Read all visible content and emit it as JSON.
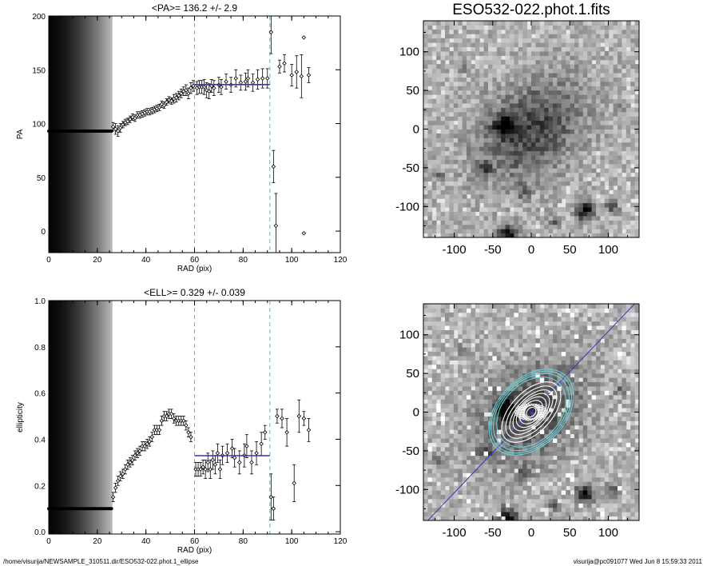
{
  "chart_data": [
    {
      "id": "pa",
      "type": "scatter",
      "title": "<PA>= 136.2 +/-   2.9",
      "xlabel": "RAD (pix)",
      "ylabel": "PA",
      "xlim": [
        0,
        120
      ],
      "ylim": [
        -20,
        200
      ],
      "xticks": [
        0,
        20,
        40,
        60,
        80,
        100,
        120
      ],
      "yticks": [
        0,
        50,
        100,
        150,
        200
      ],
      "vlines": [
        60,
        91
      ],
      "fit": {
        "x": [
          60,
          91
        ],
        "y": 136.2
      },
      "flat": {
        "x": [
          0,
          26
        ],
        "y": 93
      },
      "points": [
        [
          26.5,
          97,
          4
        ],
        [
          27.5,
          95,
          5
        ],
        [
          28.5,
          93,
          5
        ],
        [
          29.5,
          96,
          4
        ],
        [
          30.5,
          99,
          3
        ],
        [
          31.5,
          101,
          3
        ],
        [
          32.5,
          102,
          3
        ],
        [
          33.5,
          104,
          3
        ],
        [
          34.5,
          106,
          3
        ],
        [
          35.5,
          105,
          3
        ],
        [
          36.5,
          108,
          3
        ],
        [
          37.5,
          108,
          3
        ],
        [
          38.5,
          109,
          3
        ],
        [
          39.5,
          110,
          3
        ],
        [
          40.5,
          111,
          3
        ],
        [
          41.5,
          111,
          3
        ],
        [
          42.5,
          112,
          3
        ],
        [
          43.5,
          113,
          3
        ],
        [
          44.5,
          114,
          3
        ],
        [
          45.5,
          115,
          3
        ],
        [
          46.5,
          118,
          3
        ],
        [
          47.5,
          117,
          3
        ],
        [
          48.5,
          120,
          3
        ],
        [
          49.5,
          122,
          3
        ],
        [
          50.5,
          121,
          3
        ],
        [
          51.5,
          123,
          4
        ],
        [
          52.5,
          124,
          4
        ],
        [
          53.5,
          126,
          4
        ],
        [
          54.5,
          128,
          4
        ],
        [
          55.5,
          130,
          4
        ],
        [
          56.5,
          131,
          5
        ],
        [
          57.5,
          128,
          5
        ],
        [
          58.5,
          133,
          5
        ],
        [
          59.5,
          135,
          5
        ],
        [
          61,
          133,
          6
        ],
        [
          62,
          134,
          6
        ],
        [
          63,
          134,
          6
        ],
        [
          64,
          134,
          7
        ],
        [
          65,
          131,
          7
        ],
        [
          66,
          130,
          7
        ],
        [
          67,
          135,
          6
        ],
        [
          68,
          133,
          7
        ],
        [
          70,
          136,
          7
        ],
        [
          71,
          134,
          7
        ],
        [
          73,
          139,
          7
        ],
        [
          75,
          136,
          7
        ],
        [
          77,
          142,
          8
        ],
        [
          79,
          138,
          7
        ],
        [
          81,
          139,
          8
        ],
        [
          82,
          142,
          8
        ],
        [
          84,
          138,
          8
        ],
        [
          86,
          141,
          9
        ],
        [
          88,
          142,
          9
        ],
        [
          90,
          142,
          9
        ],
        [
          91.5,
          185,
          20
        ],
        [
          92.5,
          60,
          15
        ],
        [
          93.5,
          5,
          30
        ],
        [
          95,
          153,
          6
        ],
        [
          97,
          156,
          8
        ],
        [
          100,
          145,
          10
        ],
        [
          102,
          148,
          15
        ],
        [
          104,
          144,
          20
        ],
        [
          105,
          180,
          0
        ],
        [
          105,
          -2,
          0
        ],
        [
          107,
          145,
          7
        ]
      ]
    },
    {
      "id": "ell",
      "type": "scatter",
      "title": "<ELL>= 0.329 +/-  0.039",
      "xlabel": "RAD (pix)",
      "ylabel": "ellipticity",
      "xlim": [
        0,
        120
      ],
      "ylim": [
        -0.01,
        1.0
      ],
      "xticks": [
        0,
        20,
        40,
        60,
        80,
        100,
        120
      ],
      "yticks": [
        0.0,
        0.2,
        0.4,
        0.6,
        0.8,
        1.0
      ],
      "ytick_labels": [
        "0.0",
        "0.2",
        "0.4",
        "0.6",
        "0.8",
        "1.0"
      ],
      "vlines": [
        60,
        91
      ],
      "fit": {
        "x": [
          60,
          91
        ],
        "y": 0.329
      },
      "flat": {
        "x": [
          0,
          26
        ],
        "y": 0.1
      },
      "points": [
        [
          26.5,
          0.15,
          0.02
        ],
        [
          27.5,
          0.19,
          0.02
        ],
        [
          28.5,
          0.22,
          0.02
        ],
        [
          29.5,
          0.24,
          0.02
        ],
        [
          30.5,
          0.25,
          0.02
        ],
        [
          31.5,
          0.27,
          0.02
        ],
        [
          32.5,
          0.29,
          0.02
        ],
        [
          33.5,
          0.3,
          0.02
        ],
        [
          34.5,
          0.31,
          0.02
        ],
        [
          35.5,
          0.33,
          0.02
        ],
        [
          36.5,
          0.34,
          0.02
        ],
        [
          37.5,
          0.35,
          0.02
        ],
        [
          38.5,
          0.37,
          0.02
        ],
        [
          39.5,
          0.37,
          0.02
        ],
        [
          40.5,
          0.38,
          0.02
        ],
        [
          41.5,
          0.39,
          0.02
        ],
        [
          42.5,
          0.41,
          0.02
        ],
        [
          43.5,
          0.44,
          0.02
        ],
        [
          44.5,
          0.44,
          0.02
        ],
        [
          45.5,
          0.44,
          0.02
        ],
        [
          46.5,
          0.48,
          0.02
        ],
        [
          47.5,
          0.5,
          0.02
        ],
        [
          48.5,
          0.5,
          0.02
        ],
        [
          49.5,
          0.51,
          0.02
        ],
        [
          50.5,
          0.51,
          0.02
        ],
        [
          51.5,
          0.49,
          0.02
        ],
        [
          52.5,
          0.48,
          0.02
        ],
        [
          53.5,
          0.48,
          0.02
        ],
        [
          54.5,
          0.48,
          0.02
        ],
        [
          55.5,
          0.48,
          0.02
        ],
        [
          56.5,
          0.46,
          0.02
        ],
        [
          57.5,
          0.43,
          0.02
        ],
        [
          58.5,
          0.41,
          0.02
        ],
        [
          60.5,
          0.27,
          0.03
        ],
        [
          61.5,
          0.27,
          0.03
        ],
        [
          62.5,
          0.27,
          0.03
        ],
        [
          63.5,
          0.28,
          0.03
        ],
        [
          64.5,
          0.27,
          0.04
        ],
        [
          65.5,
          0.3,
          0.04
        ],
        [
          66.5,
          0.27,
          0.04
        ],
        [
          67.5,
          0.31,
          0.04
        ],
        [
          68.5,
          0.29,
          0.04
        ],
        [
          69.5,
          0.34,
          0.04
        ],
        [
          70.5,
          0.27,
          0.04
        ],
        [
          71.5,
          0.33,
          0.04
        ],
        [
          73.5,
          0.34,
          0.04
        ],
        [
          75.5,
          0.36,
          0.04
        ],
        [
          76.5,
          0.32,
          0.04
        ],
        [
          78.5,
          0.3,
          0.05
        ],
        [
          80.5,
          0.33,
          0.05
        ],
        [
          81.5,
          0.37,
          0.05
        ],
        [
          83.5,
          0.3,
          0.05
        ],
        [
          85.5,
          0.34,
          0.05
        ],
        [
          87.5,
          0.38,
          0.05
        ],
        [
          89,
          0.43,
          0.03
        ],
        [
          91.5,
          0.15,
          0.1
        ],
        [
          92.5,
          0.1,
          0.05
        ],
        [
          94,
          0.5,
          0.03
        ],
        [
          96,
          0.49,
          0.04
        ],
        [
          98,
          0.43,
          0.06
        ],
        [
          101,
          0.21,
          0.08
        ],
        [
          103,
          0.5,
          0.07
        ],
        [
          105,
          0.49,
          0.03
        ],
        [
          107,
          0.44,
          0.05
        ]
      ]
    },
    {
      "id": "img1",
      "type": "heatmap",
      "title": "ESO532-022.phot.1.fits",
      "xlim": [
        -140,
        140
      ],
      "ylim": [
        -140,
        140
      ],
      "xticks": [
        -100,
        -50,
        0,
        50,
        100
      ],
      "yticks": [
        -100,
        -50,
        0,
        50,
        100
      ]
    },
    {
      "id": "img2",
      "type": "heatmap",
      "title": "",
      "xlim": [
        -140,
        140
      ],
      "ylim": [
        -140,
        140
      ],
      "xticks": [
        -100,
        -50,
        0,
        50,
        100
      ],
      "yticks": [
        -100,
        -50,
        0,
        50,
        100
      ],
      "major_axis_pa": 136.2,
      "ellipses": [
        {
          "a": 65,
          "ell": 0.33,
          "color": "#6fcfd6"
        },
        {
          "a": 62,
          "ell": 0.33,
          "color": "#6fcfd6"
        },
        {
          "a": 58,
          "ell": 0.32,
          "color": "#6fcfd6"
        },
        {
          "a": 52,
          "ell": 0.29,
          "color": "#6fcfd6"
        },
        {
          "a": 48,
          "ell": 0.45,
          "color": "#ffffff"
        },
        {
          "a": 42,
          "ell": 0.48,
          "color": "#ffffff"
        },
        {
          "a": 36,
          "ell": 0.5,
          "color": "#ffffff"
        },
        {
          "a": 30,
          "ell": 0.48,
          "color": "#ffffff"
        },
        {
          "a": 24,
          "ell": 0.42,
          "color": "#ffffff"
        },
        {
          "a": 18,
          "ell": 0.37,
          "color": "#ffffff"
        },
        {
          "a": 12,
          "ell": 0.3,
          "color": "#ffffff"
        },
        {
          "a": 7,
          "ell": 0.25,
          "color": "#ffffff"
        }
      ]
    }
  ],
  "footer": {
    "left": "/home/visurija/NEWSAMPLE_310511.dir/ESO532-022.phot.1_ellipse",
    "right": "visurija@pc091077  Wed Jun  8 15:59:33 2011"
  },
  "colors": {
    "fit": "#3333bb",
    "vline": "#33cccc",
    "contour_outer": "#6fcfd6"
  }
}
